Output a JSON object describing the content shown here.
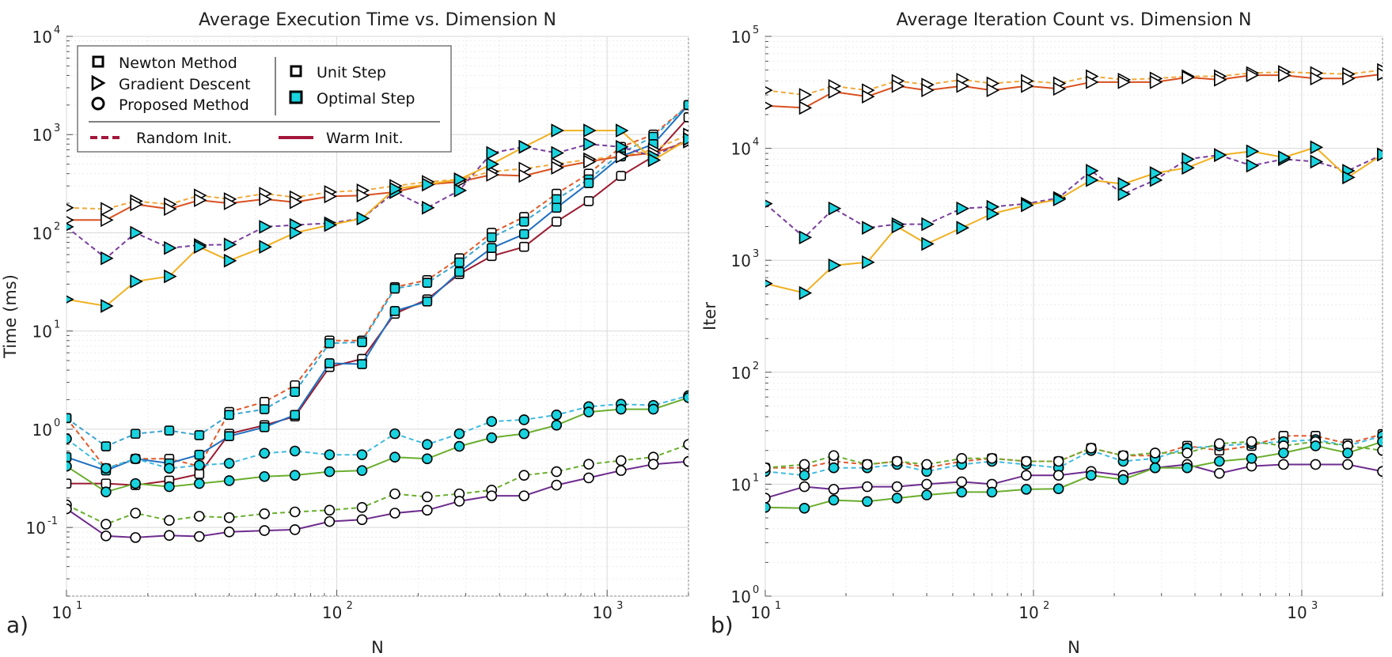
{
  "figure": {
    "panel_a_label": "a)",
    "panel_b_label": "b)"
  },
  "legend": {
    "methods": [
      "Newton Method",
      "Gradient Descent",
      "Proposed Method"
    ],
    "steps": [
      "Unit Step",
      "Optimal Step"
    ],
    "inits": [
      "Random Init.",
      "Warm Init."
    ],
    "colors": {
      "init_line": "#a3173a",
      "optimal_fill": "#19d3df",
      "unit_fill": "#ffffff"
    }
  },
  "chart_data": [
    {
      "type": "line",
      "title": "Average Execution Time vs. Dimension N",
      "xlabel": "N",
      "ylabel": "Time (ms)",
      "xscale": "log",
      "yscale": "log",
      "xlim": [
        10,
        2000
      ],
      "ylim": [
        0.02,
        10000
      ],
      "x_tick_labels": [
        "10",
        "10",
        "10"
      ],
      "x_tick_exps": [
        "1",
        "2",
        "3"
      ],
      "y_tick_labels": [
        "10",
        "10",
        "10",
        "10",
        "10",
        "10"
      ],
      "y_tick_exps": [
        "-1",
        "0",
        "1",
        "2",
        "3",
        "4"
      ],
      "x": [
        10,
        14,
        18,
        24,
        31,
        40,
        54,
        70,
        94,
        124,
        164,
        216,
        284,
        374,
        493,
        650,
        855,
        1126,
        1483,
        2000
      ],
      "series": [
        {
          "name": "Newton Method, Unit Step, Random Init.",
          "color": "#e05a2a",
          "dash": true,
          "marker": "square",
          "fill": "#ffffff",
          "values": [
            1.3,
            0.4,
            0.5,
            0.5,
            0.42,
            1.5,
            1.9,
            2.8,
            8,
            8,
            28,
            33,
            55,
            100,
            145,
            250,
            400,
            750,
            1000,
            2000
          ]
        },
        {
          "name": "Newton Method, Optimal Step, Random Init.",
          "color": "#3aa5cf",
          "dash": true,
          "marker": "square",
          "fill": "#19d3df",
          "values": [
            1.3,
            0.67,
            0.9,
            0.97,
            0.87,
            1.4,
            1.6,
            2.4,
            7.5,
            7.7,
            27,
            31,
            50,
            90,
            130,
            220,
            350,
            650,
            950,
            2000
          ]
        },
        {
          "name": "Newton Method, Unit Step, Warm Init.",
          "color": "#9b1b30",
          "dash": false,
          "marker": "square",
          "fill": "#ffffff",
          "values": [
            0.28,
            0.28,
            0.27,
            0.3,
            0.35,
            0.9,
            1.1,
            1.35,
            4.3,
            5.2,
            15,
            21,
            38,
            58,
            72,
            130,
            210,
            380,
            600,
            1500
          ]
        },
        {
          "name": "Newton Method, Optimal Step, Warm Init.",
          "color": "#1f6fbf",
          "dash": false,
          "marker": "square",
          "fill": "#19d3df",
          "values": [
            0.52,
            0.38,
            0.5,
            0.45,
            0.55,
            0.85,
            1.05,
            1.4,
            4.7,
            4.6,
            16,
            20,
            40,
            70,
            97,
            180,
            320,
            600,
            800,
            2000
          ]
        },
        {
          "name": "Gradient Descent, Unit Step, Random Init.",
          "color": "#f2a93b",
          "dash": true,
          "marker": "triangle",
          "fill": "#ffffff",
          "values": [
            180,
            175,
            210,
            195,
            240,
            220,
            250,
            230,
            260,
            270,
            300,
            330,
            350,
            420,
            450,
            500,
            560,
            600,
            700,
            1000
          ]
        },
        {
          "name": "Gradient Descent, Unit Step, Warm Init.",
          "color": "#d9501f",
          "dash": false,
          "marker": "triangle",
          "fill": "#ffffff",
          "values": [
            135,
            135,
            195,
            175,
            215,
            200,
            220,
            205,
            235,
            240,
            260,
            310,
            330,
            390,
            380,
            460,
            530,
            600,
            650,
            850
          ]
        },
        {
          "name": "Gradient Descent, Optimal Step, Random Init.",
          "color": "#7a3e9d",
          "dash": true,
          "marker": "triangle",
          "fill": "#19d3df",
          "values": [
            115,
            55,
            100,
            70,
            75,
            76,
            115,
            120,
            125,
            140,
            260,
            180,
            270,
            650,
            750,
            650,
            800,
            750,
            600,
            900
          ]
        },
        {
          "name": "Gradient Descent, Optimal Step, Warm Init.",
          "color": "#f0b020",
          "dash": false,
          "marker": "triangle",
          "fill": "#19d3df",
          "values": [
            21,
            18,
            32,
            36,
            72,
            52,
            72,
            100,
            120,
            140,
            280,
            310,
            350,
            500,
            750,
            1100,
            1100,
            1100,
            550,
            900
          ]
        },
        {
          "name": "Proposed Method, Optimal Step, Random Init.",
          "color": "#3fbbe0",
          "dash": true,
          "marker": "circle",
          "fill": "#19d3df",
          "values": [
            0.8,
            0.4,
            0.5,
            0.4,
            0.43,
            0.45,
            0.57,
            0.6,
            0.55,
            0.55,
            0.9,
            0.7,
            0.9,
            1.2,
            1.25,
            1.4,
            1.7,
            1.8,
            1.75,
            2.2
          ]
        },
        {
          "name": "Proposed Method, Optimal Step, Warm Init.",
          "color": "#6aae2e",
          "dash": false,
          "marker": "circle",
          "fill": "#19d3df",
          "values": [
            0.42,
            0.23,
            0.28,
            0.26,
            0.28,
            0.3,
            0.33,
            0.34,
            0.37,
            0.38,
            0.52,
            0.5,
            0.67,
            0.82,
            0.9,
            1.1,
            1.5,
            1.6,
            1.6,
            2.1
          ]
        },
        {
          "name": "Proposed Method, Unit Step, Random Init.",
          "color": "#6aae2e",
          "dash": true,
          "marker": "circle",
          "fill": "#ffffff",
          "values": [
            0.17,
            0.108,
            0.14,
            0.118,
            0.13,
            0.126,
            0.138,
            0.144,
            0.15,
            0.16,
            0.22,
            0.205,
            0.22,
            0.24,
            0.34,
            0.37,
            0.44,
            0.48,
            0.52,
            0.7
          ]
        },
        {
          "name": "Proposed Method, Unit Step, Warm Init.",
          "color": "#6e2c8e",
          "dash": false,
          "marker": "circle",
          "fill": "#ffffff",
          "values": [
            0.155,
            0.082,
            0.079,
            0.083,
            0.081,
            0.09,
            0.093,
            0.095,
            0.115,
            0.12,
            0.14,
            0.15,
            0.185,
            0.21,
            0.21,
            0.27,
            0.32,
            0.38,
            0.44,
            0.47
          ]
        }
      ]
    },
    {
      "type": "line",
      "title": "Average Iteration Count vs. Dimension N",
      "xlabel": "N",
      "ylabel": "Iter",
      "xscale": "log",
      "yscale": "log",
      "xlim": [
        10,
        2000
      ],
      "ylim": [
        1,
        100000
      ],
      "x_tick_labels": [
        "10",
        "10",
        "10"
      ],
      "x_tick_exps": [
        "1",
        "2",
        "3"
      ],
      "y_tick_labels": [
        "10",
        "10",
        "10",
        "10",
        "10",
        "10"
      ],
      "y_tick_exps": [
        "0",
        "1",
        "2",
        "3",
        "4",
        "5"
      ],
      "x": [
        10,
        14,
        18,
        24,
        31,
        40,
        54,
        70,
        94,
        124,
        164,
        216,
        284,
        374,
        493,
        650,
        855,
        1126,
        1483,
        2000
      ],
      "series": [
        {
          "name": "Gradient Descent, Unit Step, Random Init.",
          "color": "#f2a93b",
          "dash": true,
          "marker": "triangle",
          "fill": "#ffffff",
          "values": [
            33000,
            30000,
            36000,
            33000,
            40000,
            37000,
            41000,
            38000,
            40000,
            38000,
            44000,
            41000,
            42000,
            44000,
            44000,
            47000,
            48000,
            47000,
            46000,
            50000
          ]
        },
        {
          "name": "Gradient Descent, Unit Step, Warm Init.",
          "color": "#d9501f",
          "dash": false,
          "marker": "triangle",
          "fill": "#ffffff",
          "values": [
            24000,
            23000,
            32000,
            29000,
            36000,
            33000,
            36000,
            33000,
            36000,
            34000,
            39000,
            39000,
            39000,
            43000,
            41000,
            45000,
            45000,
            42000,
            42000,
            46000
          ]
        },
        {
          "name": "Gradient Descent, Optimal Step, Random Init.",
          "color": "#7a3e9d",
          "dash": true,
          "marker": "triangle",
          "fill": "#19d3df",
          "values": [
            3200,
            1600,
            2900,
            1950,
            2100,
            2100,
            2900,
            3000,
            3200,
            3600,
            6300,
            3900,
            5200,
            8000,
            8700,
            7000,
            8000,
            7600,
            6300,
            8800
          ]
        },
        {
          "name": "Gradient Descent, Optimal Step, Warm Init.",
          "color": "#f0b020",
          "dash": false,
          "marker": "triangle",
          "fill": "#19d3df",
          "values": [
            620,
            510,
            900,
            960,
            2000,
            1400,
            1950,
            2600,
            3100,
            3500,
            5200,
            4800,
            6000,
            6700,
            8700,
            9400,
            8300,
            10200,
            5500,
            8800
          ]
        },
        {
          "name": "Newton Method, Unit Step, Random Init.",
          "color": "#e05a2a",
          "dash": true,
          "marker": "square",
          "fill": "#ffffff",
          "values": [
            14,
            14,
            16,
            15,
            16,
            14,
            16,
            17,
            16,
            16,
            21,
            18,
            18,
            22,
            20,
            22,
            27,
            27,
            23,
            28
          ]
        },
        {
          "name": "Proposed Method, Optimal Step, Random Init.",
          "color": "#3fbbe0",
          "dash": true,
          "marker": "circle",
          "fill": "#19d3df",
          "values": [
            13,
            12,
            14,
            14,
            15,
            13,
            15,
            16,
            15,
            14,
            20,
            16,
            17,
            21,
            22,
            23,
            24,
            25,
            22,
            27
          ]
        },
        {
          "name": "Proposed Method, Unit Step, Random Init.",
          "color": "#6aae2e",
          "dash": true,
          "marker": "circle",
          "fill": "#ffffff",
          "values": [
            14,
            15,
            18,
            15,
            16,
            15,
            17,
            17,
            16,
            16,
            21,
            18,
            19,
            19,
            23,
            24,
            22,
            24,
            22,
            20
          ]
        },
        {
          "name": "Proposed Method, Unit Step, Warm Init.",
          "color": "#6e2c8e",
          "dash": false,
          "marker": "circle",
          "fill": "#ffffff",
          "values": [
            7.5,
            9.5,
            9,
            9.5,
            9.5,
            10,
            10.5,
            10,
            12,
            12,
            13,
            12,
            14,
            15,
            12.5,
            14.5,
            15,
            15,
            15,
            13
          ]
        },
        {
          "name": "Proposed Method, Optimal Step, Warm Init.",
          "color": "#6aae2e",
          "dash": false,
          "marker": "circle",
          "fill": "#19d3df",
          "values": [
            6.2,
            6.1,
            7.2,
            7.0,
            7.5,
            8,
            8.5,
            8.5,
            9,
            9.1,
            12,
            11,
            14,
            14,
            16,
            17,
            19,
            22,
            19,
            24
          ]
        }
      ]
    }
  ]
}
